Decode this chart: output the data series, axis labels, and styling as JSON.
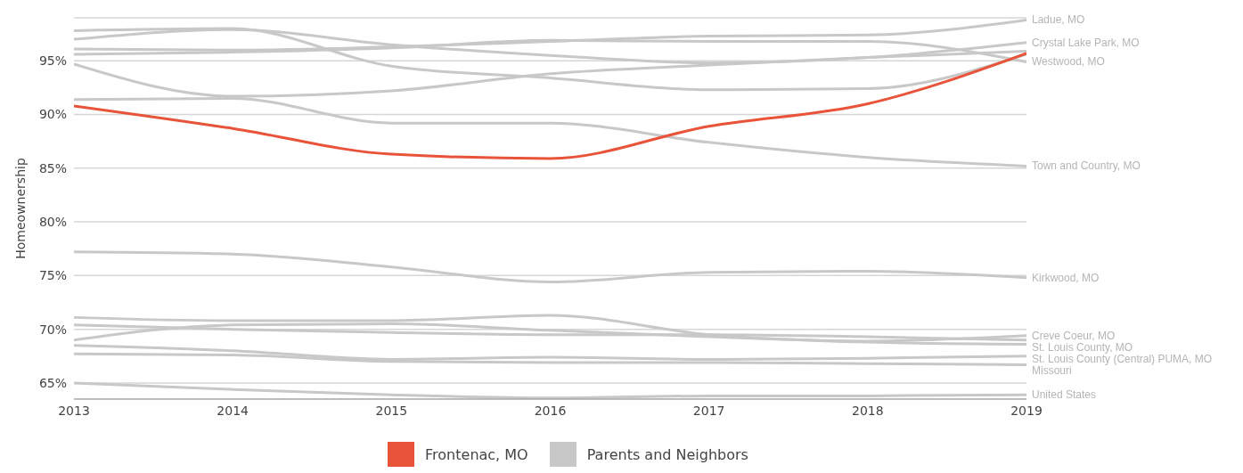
{
  "chart_data": {
    "type": "line",
    "ylabel": "Homeownership",
    "x": [
      2013,
      2014,
      2015,
      2016,
      2017,
      2018,
      2019
    ],
    "xlim": [
      2013,
      2019
    ],
    "xticks": [
      2013,
      2014,
      2015,
      2016,
      2017,
      2018,
      2019
    ],
    "ylim": [
      63.5,
      99
    ],
    "yticks": [
      {
        "value": 65,
        "label": "65%"
      },
      {
        "value": 70,
        "label": "70%"
      },
      {
        "value": 75,
        "label": "75%"
      },
      {
        "value": 80,
        "label": "80%"
      },
      {
        "value": 85,
        "label": "85%"
      },
      {
        "value": 90,
        "label": "90%"
      },
      {
        "value": 95,
        "label": "95%"
      }
    ],
    "grid": "y",
    "legend": "bottom",
    "marker": "none",
    "line_style": "solid",
    "annotations": [
      "Parents and Neighbors"
    ],
    "series": [
      {
        "name": "Frontenac, MO",
        "color": "#e8533a",
        "values": [
          90.8,
          88.7,
          86.3,
          85.9,
          88.9,
          91.0,
          95.7
        ]
      },
      {
        "name": "Ladue, MO",
        "color": "#c8c8c8",
        "values": [
          96.1,
          96.0,
          96.3,
          96.8,
          97.3,
          97.4,
          98.8
        ]
      },
      {
        "name": "Crystal Lake Park, MO",
        "color": "#c8c8c8",
        "values": [
          97.0,
          97.9,
          96.5,
          95.5,
          94.8,
          95.3,
          96.7
        ]
      },
      {
        "color": "#c8c8c8",
        "values": [
          97.8,
          98.0,
          94.5,
          93.4,
          92.3,
          92.4,
          95.6
        ]
      },
      {
        "name": "Westwood, MO",
        "color": "#c8c8c8",
        "values": [
          95.6,
          95.8,
          96.2,
          96.9,
          96.8,
          96.8,
          94.9
        ]
      },
      {
        "color": "#c8c8c8",
        "values": [
          94.7,
          91.7,
          92.2,
          93.8,
          94.6,
          95.3,
          95.9
        ]
      },
      {
        "name": "Town and Country, MO",
        "color": "#c8c8c8",
        "values": [
          91.4,
          91.5,
          89.2,
          89.2,
          87.4,
          86.0,
          85.2
        ]
      },
      {
        "name": "Kirkwood, MO",
        "color": "#c8c8c8",
        "values": [
          77.2,
          77.0,
          75.8,
          74.4,
          75.3,
          75.4,
          74.8
        ]
      },
      {
        "name": "Creve Coeur, MO",
        "color": "#c8c8c8",
        "values": [
          69.0,
          70.4,
          70.5,
          69.9,
          69.3,
          68.9,
          69.4
        ]
      },
      {
        "name": "St. Louis County, MO",
        "color": "#c8c8c8",
        "values": [
          70.4,
          70.0,
          69.7,
          69.5,
          69.5,
          69.3,
          69.0
        ]
      },
      {
        "color": "#c8c8c8",
        "values": [
          71.1,
          70.8,
          70.8,
          71.3,
          69.5,
          68.8,
          68.6
        ]
      },
      {
        "name": "St. Louis County (Central) PUMA, MO",
        "color": "#c8c8c8",
        "values": [
          68.5,
          68.0,
          67.2,
          67.4,
          67.2,
          67.3,
          67.5
        ]
      },
      {
        "name": "Missouri",
        "color": "#c8c8c8",
        "values": [
          67.7,
          67.6,
          67.0,
          66.9,
          66.9,
          66.8,
          66.7
        ]
      },
      {
        "name": "United States",
        "color": "#c8c8c8",
        "values": [
          65.0,
          64.4,
          63.9,
          63.6,
          63.8,
          63.8,
          63.9
        ]
      }
    ]
  }
}
